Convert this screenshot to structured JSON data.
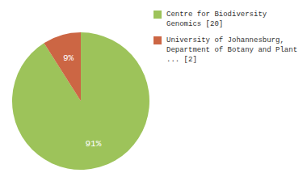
{
  "chart_data": {
    "type": "pie",
    "categories": [
      "Centre for Biodiversity\nGenomics [20]",
      "University of Johannesburg,\nDepartment of Botany and Plant\n... [2]"
    ],
    "values": [
      91,
      9
    ],
    "value_labels": [
      "91%",
      "9%"
    ],
    "colors": [
      "#9dc35a",
      "#cc6644"
    ],
    "data_labels": true,
    "legend": "right"
  }
}
